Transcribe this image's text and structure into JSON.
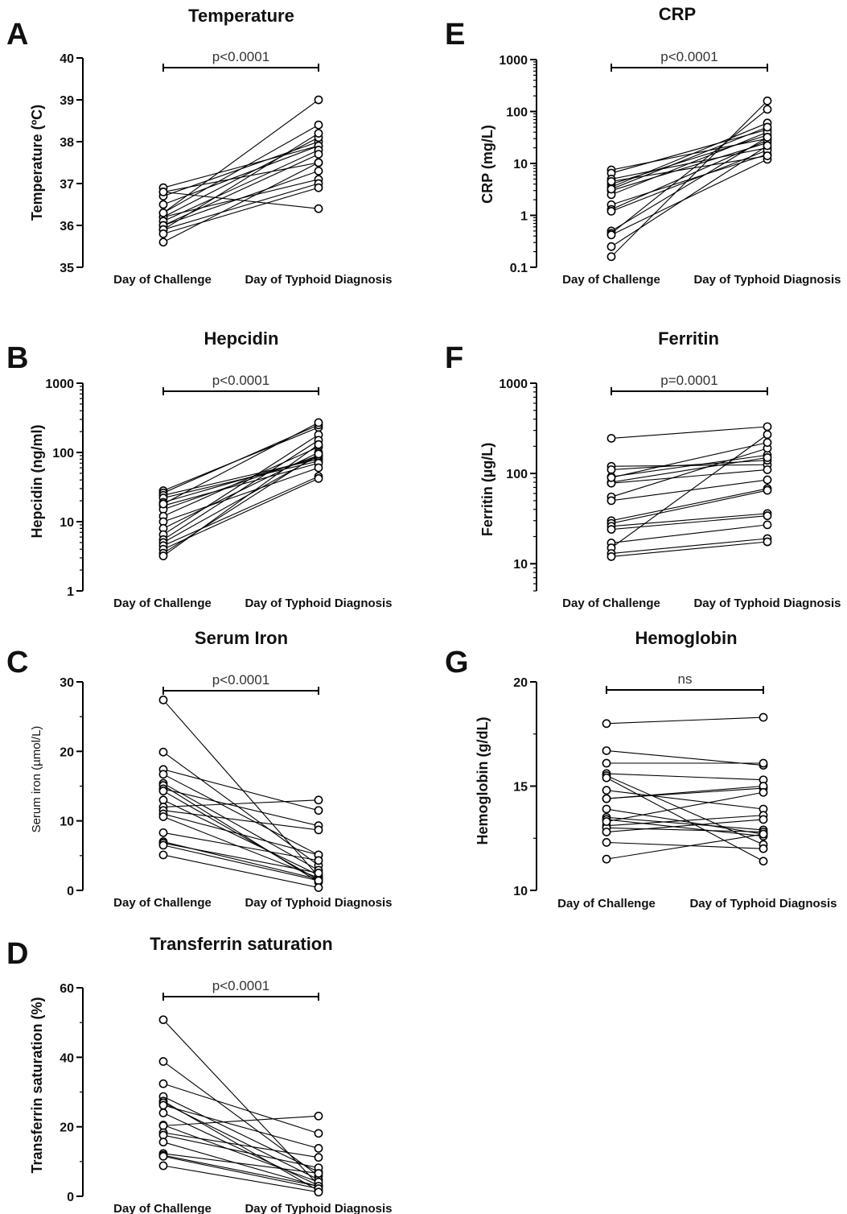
{
  "chart_data": [
    {
      "type": "line",
      "panel": "A",
      "title": "Temperature",
      "ylabel": "Temperature (ºC)",
      "categories": [
        "Day of Challenge",
        "Day of Typhoid Diagnosis"
      ],
      "yscale": "linear",
      "ylim": [
        35,
        40
      ],
      "yticks": [
        35,
        36,
        37,
        38,
        39,
        40
      ],
      "ytick_labels": [
        "35",
        "36",
        "37",
        "38",
        "39",
        "40"
      ],
      "significance": "p<0.0001",
      "pairs": [
        [
          36.9,
          37.9
        ],
        [
          36.8,
          37.5
        ],
        [
          36.7,
          38.0
        ],
        [
          36.5,
          37.9
        ],
        [
          36.3,
          38.4
        ],
        [
          36.2,
          37.1
        ],
        [
          36.2,
          38.1
        ],
        [
          36.1,
          37.8
        ],
        [
          36.0,
          37.7
        ],
        [
          36.0,
          37.3
        ],
        [
          35.9,
          37.0
        ],
        [
          35.9,
          38.2
        ],
        [
          35.8,
          36.9
        ],
        [
          35.6,
          37.5
        ],
        [
          36.8,
          36.4
        ],
        [
          36.3,
          39.0
        ]
      ]
    },
    {
      "type": "line",
      "panel": "B",
      "title": "Hepcidin",
      "ylabel": "Hepcidin (ng/ml)",
      "categories": [
        "Day of Challenge",
        "Day of Typhoid Diagnosis"
      ],
      "yscale": "log",
      "ylim": [
        1,
        1000
      ],
      "yticks": [
        1,
        10,
        100,
        1000
      ],
      "ytick_labels": [
        "1",
        "10",
        "100",
        "1000"
      ],
      "significance": "p<0.0001",
      "pairs": [
        [
          28,
          230
        ],
        [
          26,
          250
        ],
        [
          24,
          80
        ],
        [
          22,
          75
        ],
        [
          19,
          85
        ],
        [
          17,
          70
        ],
        [
          15,
          90
        ],
        [
          12,
          120
        ],
        [
          10,
          60
        ],
        [
          8,
          100
        ],
        [
          6.5,
          180
        ],
        [
          5.5,
          150
        ],
        [
          5,
          90
        ],
        [
          4.5,
          45
        ],
        [
          4,
          42
        ],
        [
          3.5,
          95
        ],
        [
          3.2,
          130
        ],
        [
          18,
          270
        ]
      ]
    },
    {
      "type": "line",
      "panel": "C",
      "title": "Serum Iron",
      "ylabel": "Serum iron (µmol/L)",
      "categories": [
        "Day of Challenge",
        "Day of Typhoid Diagnosis"
      ],
      "yscale": "linear",
      "ylim": [
        0,
        30
      ],
      "yticks": [
        0,
        10,
        20,
        30
      ],
      "ytick_labels": [
        "0",
        "10",
        "20",
        "30"
      ],
      "significance": "p<0.0001",
      "pairs": [
        [
          27.4,
          2.0
        ],
        [
          19.9,
          3.6
        ],
        [
          17.4,
          11.5
        ],
        [
          16.7,
          5.1
        ],
        [
          15.4,
          2.9
        ],
        [
          15.1,
          1.2
        ],
        [
          14.6,
          9.3
        ],
        [
          14.3,
          1.5
        ],
        [
          13.0,
          2.2
        ],
        [
          12.0,
          13.0
        ],
        [
          11.5,
          8.7
        ],
        [
          11.0,
          5.1
        ],
        [
          10.6,
          1.8
        ],
        [
          8.3,
          4.3
        ],
        [
          7.0,
          1.6
        ],
        [
          6.8,
          2.5
        ],
        [
          6.5,
          1.4
        ],
        [
          5.1,
          0.4
        ]
      ]
    },
    {
      "type": "line",
      "panel": "D",
      "title": "Transferrin saturation",
      "ylabel": "Transferrin saturation (%)",
      "categories": [
        "Day of Challenge",
        "Day of Typhoid Diagnosis"
      ],
      "yscale": "linear",
      "ylim": [
        0,
        60
      ],
      "yticks": [
        0,
        20,
        40,
        60
      ],
      "ytick_labels": [
        "0",
        "20",
        "40",
        "60"
      ],
      "significance": "p<0.0001",
      "pairs": [
        [
          50.8,
          3.2
        ],
        [
          38.8,
          5.9
        ],
        [
          32.4,
          18.1
        ],
        [
          28.7,
          7.0
        ],
        [
          27.4,
          1.6
        ],
        [
          26.9,
          4.8
        ],
        [
          26.2,
          13.8
        ],
        [
          24.0,
          3.1
        ],
        [
          20.5,
          4.1
        ],
        [
          20.3,
          23.1
        ],
        [
          18.3,
          11.2
        ],
        [
          17.6,
          8.2
        ],
        [
          15.6,
          2.8
        ],
        [
          12.3,
          6.6
        ],
        [
          11.8,
          2.9
        ],
        [
          11.5,
          2.2
        ],
        [
          8.8,
          1.2
        ]
      ]
    },
    {
      "type": "line",
      "panel": "E",
      "title": "CRP",
      "ylabel": "CRP (mg/L)",
      "categories": [
        "Day of Challenge",
        "Day of Typhoid Diagnosis"
      ],
      "yscale": "log",
      "ylim": [
        0.1,
        1000
      ],
      "yticks": [
        0.1,
        1,
        10,
        100,
        1000
      ],
      "ytick_labels": [
        "0.1",
        "1",
        "10",
        "100",
        "1000"
      ],
      "significance": "p<0.0001",
      "pairs": [
        [
          7.5,
          30
        ],
        [
          6.5,
          45
        ],
        [
          5,
          20
        ],
        [
          4,
          35
        ],
        [
          3.5,
          60
        ],
        [
          3,
          25
        ],
        [
          2.5,
          40
        ],
        [
          1.6,
          15
        ],
        [
          1.3,
          28
        ],
        [
          1.2,
          18
        ],
        [
          0.5,
          32
        ],
        [
          0.45,
          110
        ],
        [
          0.42,
          12
        ],
        [
          0.25,
          22
        ],
        [
          0.16,
          160
        ],
        [
          3.2,
          50
        ],
        [
          4.5,
          14
        ]
      ]
    },
    {
      "type": "line",
      "panel": "F",
      "title": "Ferritin",
      "ylabel": "Ferritin (µg/L)",
      "categories": [
        "Day of Challenge",
        "Day of Typhoid Diagnosis"
      ],
      "yscale": "log",
      "ylim": [
        5,
        1000
      ],
      "yticks": [
        10,
        100,
        1000
      ],
      "ytick_labels": [
        "10",
        "100",
        "1000"
      ],
      "significance": "p=0.0001",
      "pairs": [
        [
          245,
          330
        ],
        [
          120,
          125
        ],
        [
          110,
          140
        ],
        [
          92,
          160
        ],
        [
          80,
          150
        ],
        [
          78,
          110
        ],
        [
          55,
          190
        ],
        [
          50,
          85
        ],
        [
          30,
          68
        ],
        [
          28,
          65
        ],
        [
          26,
          36
        ],
        [
          24,
          34
        ],
        [
          17,
          27
        ],
        [
          15,
          270
        ],
        [
          13,
          19
        ],
        [
          12,
          17.5
        ],
        [
          90,
          220
        ]
      ]
    },
    {
      "type": "line",
      "panel": "G",
      "title": "Hemoglobin",
      "ylabel": "Hemoglobin (g/dL)",
      "categories": [
        "Day of Challenge",
        "Day of Typhoid Diagnosis"
      ],
      "yscale": "linear",
      "ylim": [
        10,
        20
      ],
      "yticks": [
        10,
        15,
        20
      ],
      "ytick_labels": [
        "10",
        "15",
        "20"
      ],
      "significance": "ns",
      "pairs": [
        [
          18.0,
          18.3
        ],
        [
          16.7,
          16.0
        ],
        [
          16.1,
          16.1
        ],
        [
          15.6,
          15.3
        ],
        [
          15.5,
          12.2
        ],
        [
          15.4,
          11.4
        ],
        [
          14.8,
          13.9
        ],
        [
          14.4,
          14.9
        ],
        [
          14.4,
          15.0
        ],
        [
          13.9,
          12.7
        ],
        [
          13.5,
          12.9
        ],
        [
          13.4,
          12.6
        ],
        [
          13.1,
          13.6
        ],
        [
          13.0,
          12.8
        ],
        [
          12.8,
          13.4
        ],
        [
          12.3,
          12.0
        ],
        [
          11.5,
          12.7
        ],
        [
          13.3,
          14.7
        ]
      ]
    }
  ]
}
